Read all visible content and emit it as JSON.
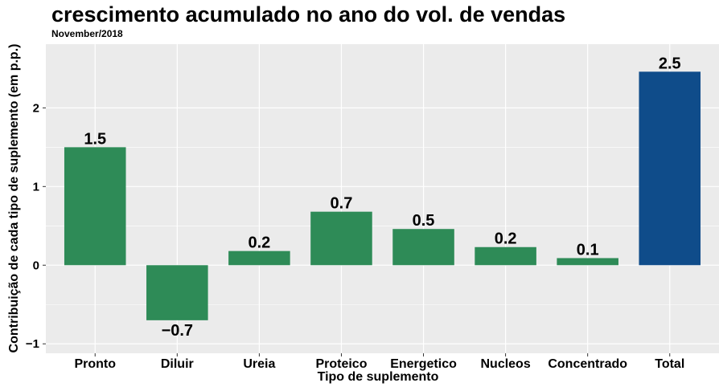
{
  "chart_data": {
    "type": "bar",
    "title": "crescimento acumulado no ano do vol. de vendas",
    "subtitle": "November/2018",
    "x_label": "Tipo de suplemento",
    "y_label": "Contribuição de cada tipo de suplemento (em p.p.)",
    "categories": [
      "Pronto",
      "Diluir",
      "Ureia",
      "Proteico",
      "Energetico",
      "Nucleos",
      "Concentrado",
      "Total"
    ],
    "values": [
      1.5,
      -0.7,
      0.18,
      0.68,
      0.46,
      0.23,
      0.09,
      2.46
    ],
    "value_labels": [
      "1.5",
      "−0.7",
      "0.2",
      "0.7",
      "0.5",
      "0.2",
      "0.1",
      "2.5"
    ],
    "colors": [
      "#2e8b57",
      "#2e8b57",
      "#2e8b57",
      "#2e8b57",
      "#2e8b57",
      "#2e8b57",
      "#2e8b57",
      "#0f4c8a"
    ],
    "ylim": [
      -1.12,
      2.81
    ],
    "yticks": [
      {
        "value": -1,
        "label": "−1"
      },
      0,
      1,
      2
    ],
    "grid": true
  }
}
